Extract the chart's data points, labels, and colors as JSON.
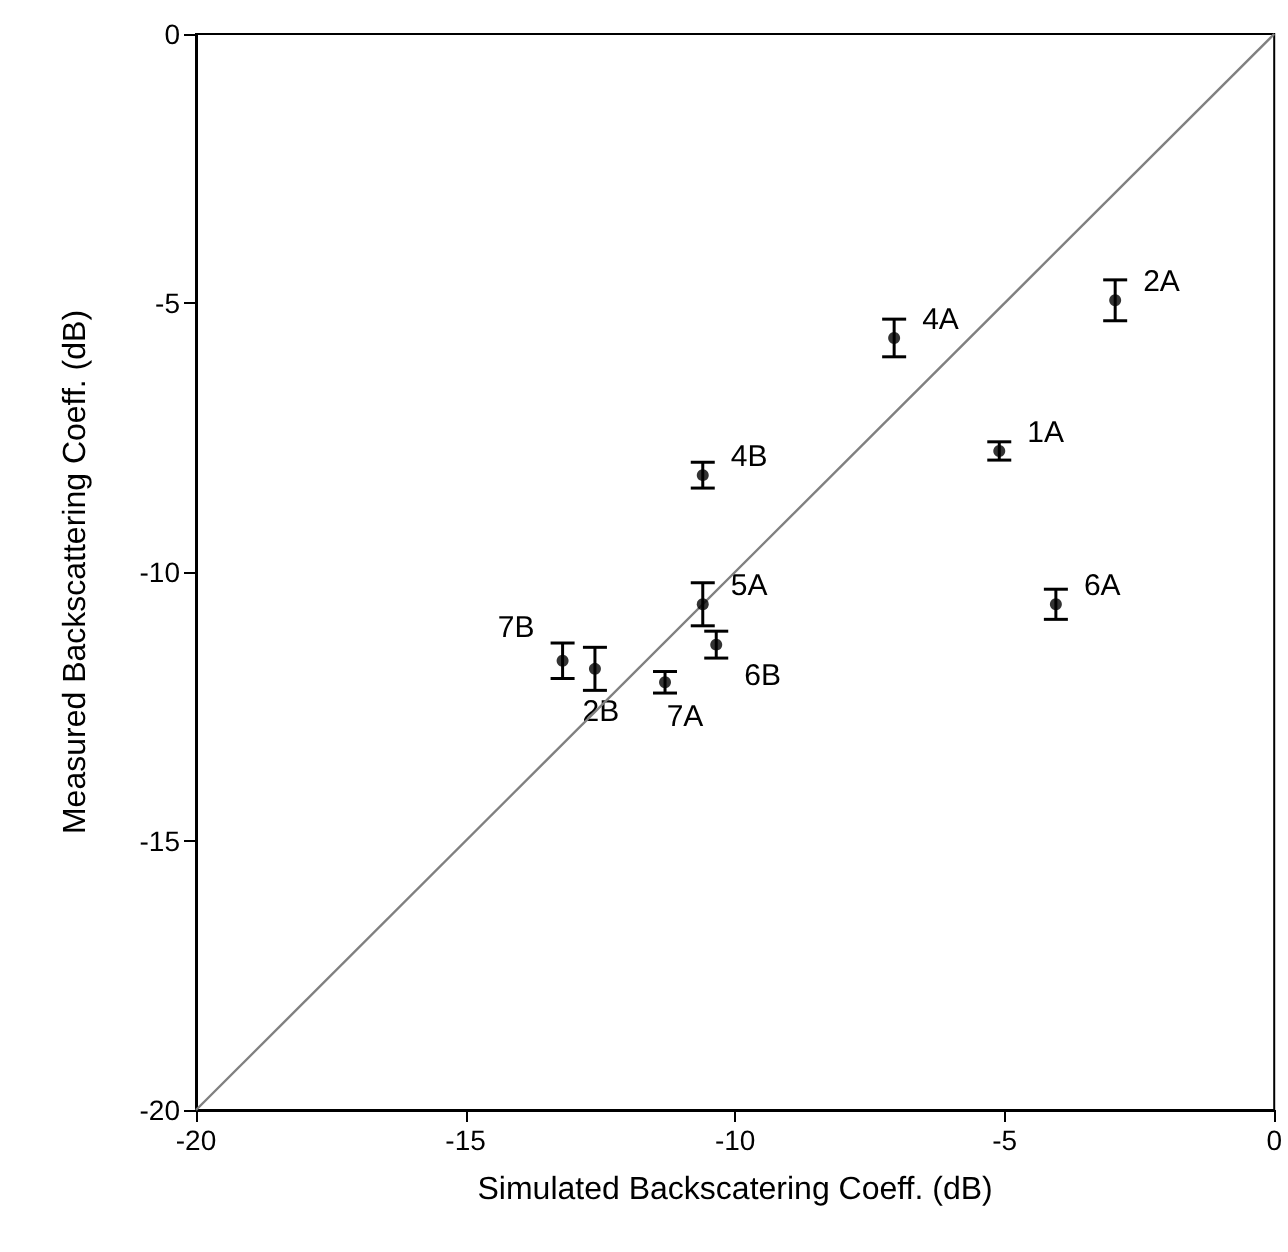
{
  "chart_data": {
    "type": "scatter",
    "xlabel": "Simulated Backscatering Coeff. (dB)",
    "ylabel": "Measured Backscattering Coeff. (dB)",
    "xlim": [
      -20,
      0
    ],
    "ylim": [
      -20,
      0
    ],
    "xticks": [
      -20,
      -15,
      -10,
      -5,
      0
    ],
    "yticks": [
      -20,
      -15,
      -10,
      -5,
      0
    ],
    "grid": false,
    "annotations": [
      {
        "text": "1A",
        "x": -5.1,
        "y": -7.75
      },
      {
        "text": "2A",
        "x": -2.95,
        "y": -4.95
      },
      {
        "text": "4A",
        "x": -7.05,
        "y": -5.65
      },
      {
        "text": "4B",
        "x": -10.6,
        "y": -8.2
      },
      {
        "text": "5A",
        "x": -10.6,
        "y": -10.6
      },
      {
        "text": "6A",
        "x": -4.05,
        "y": -10.6
      },
      {
        "text": "6B",
        "x": -10.35,
        "y": -11.35
      },
      {
        "text": "7A",
        "x": -11.3,
        "y": -12.05
      },
      {
        "text": "7B",
        "x": -13.2,
        "y": -11.65
      },
      {
        "text": "2B",
        "x": -12.6,
        "y": -11.8
      }
    ],
    "series": [
      {
        "color": "#000000",
        "marker": "circle",
        "x": [
          -5.1,
          -2.95,
          -7.05,
          -10.6,
          -10.6,
          -4.05,
          -10.35,
          -11.3,
          -13.2,
          -12.6
        ],
        "values": [
          -7.75,
          -4.95,
          -5.65,
          -8.2,
          -10.6,
          -10.6,
          -11.35,
          -12.05,
          -11.65,
          -11.8
        ],
        "errors": [
          0.17,
          0.38,
          0.35,
          0.24,
          0.4,
          0.28,
          0.25,
          0.2,
          0.33,
          0.4
        ]
      },
      {
        "type": "line",
        "color": "#808080",
        "marker": "none",
        "line_style": "solid",
        "x": [
          -20,
          0
        ],
        "values": [
          -20,
          0
        ]
      }
    ]
  }
}
